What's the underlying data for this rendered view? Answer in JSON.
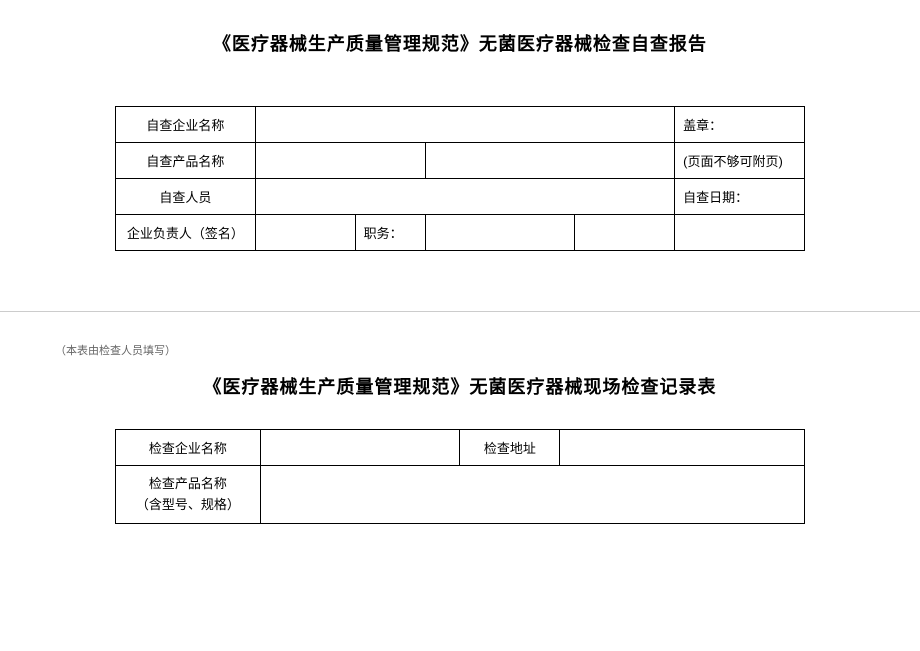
{
  "section1": {
    "title": "《医疗器械生产质量管理规范》无菌医疗器械检查自查报告",
    "table": {
      "row1": {
        "label": "自查企业名称",
        "right": "盖章："
      },
      "row2": {
        "label": "自查产品名称",
        "right": "(页面不够可附页)"
      },
      "row3": {
        "label": "自查人员",
        "right": "自查日期："
      },
      "row4": {
        "label": "企业负责人（签名）",
        "mid": "职务："
      }
    }
  },
  "section2": {
    "note": "（本表由检查人员填写）",
    "title": "《医疗器械生产质量管理规范》无菌医疗器械现场检查记录表",
    "table": {
      "row1": {
        "label": "检查企业名称",
        "label2": "检查地址"
      },
      "row2": {
        "label_line1": "检查产品名称",
        "label_line2": "（含型号、规格）"
      }
    }
  },
  "styles": {
    "border_color": "#000000",
    "background_color": "#ffffff",
    "title_fontsize": 18,
    "cell_fontsize": 13,
    "note_fontsize": 11,
    "note_color": "#666666",
    "divider_color": "#cccccc"
  }
}
